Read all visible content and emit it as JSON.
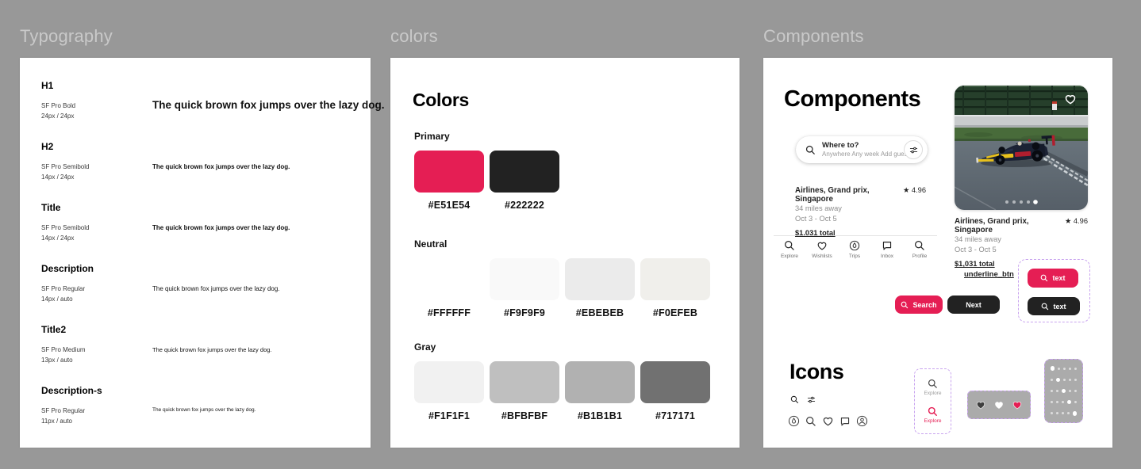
{
  "theme": {
    "bg": "#989898",
    "framelabel": "#c9c9c9",
    "pink": "#E51E54",
    "dark": "#222222",
    "lavender": "#c9a4ef",
    "grayfill": "#ababab"
  },
  "frames": {
    "typography": {
      "label": "Typography"
    },
    "colors": {
      "label": "colors"
    },
    "components": {
      "label": "Components"
    }
  },
  "typography": {
    "styles": [
      {
        "name": "H1",
        "font": "SF Pro Bold",
        "size": "24px / 24px",
        "sample": "The quick brown fox jumps over the lazy dog."
      },
      {
        "name": "H2",
        "font": "SF Pro Semibold",
        "size": "14px / 24px",
        "sample": "The quick brown fox jumps over the lazy dog."
      },
      {
        "name": "Title",
        "font": "SF Pro Semibold",
        "size": "14px / 24px",
        "sample": "The quick brown fox jumps over the lazy dog."
      },
      {
        "name": "Description",
        "font": "SF Pro Regular",
        "size": "14px / auto",
        "sample": "The quick brown fox jumps over the lazy dog."
      },
      {
        "name": "Title2",
        "font": "SF Pro Medium",
        "size": "13px / auto",
        "sample": "The quick brown fox jumps over the lazy dog."
      },
      {
        "name": "Description-s",
        "font": "SF Pro Regular",
        "size": "11px / auto",
        "sample": "The quick brown fox jumps over the lazy dog."
      }
    ]
  },
  "colors_panel": {
    "title": "Colors",
    "groups": [
      {
        "name": "Primary",
        "swatches": [
          {
            "hex": "#E51E54"
          },
          {
            "hex": "#222222"
          }
        ]
      },
      {
        "name": "Neutral",
        "swatches": [
          {
            "hex": "#FFFFFF"
          },
          {
            "hex": "#F9F9F9"
          },
          {
            "hex": "#EBEBEB"
          },
          {
            "hex": "#F0EFEB"
          }
        ]
      },
      {
        "name": "Gray",
        "swatches": [
          {
            "hex": "#F1F1F1"
          },
          {
            "hex": "#BFBFBF"
          },
          {
            "hex": "#B1B1B1"
          },
          {
            "hex": "#717171"
          }
        ]
      }
    ]
  },
  "components": {
    "title": "Components",
    "search_bar": {
      "title": "Where to?",
      "subtitle": "Anywhere Any week Add guests",
      "icon": "search-icon",
      "filter_icon": "filter-sliders-icon"
    },
    "listing": {
      "title": "Airlines, Grand prix, Singapore",
      "star": "★",
      "rating": "4.96",
      "distance": "34 miles away",
      "dates": "Oct 3 - Oct 5",
      "price": "$1,031 total"
    },
    "nav": {
      "items": [
        {
          "label": "Explore",
          "icon": "search-icon"
        },
        {
          "label": "Wishlists",
          "icon": "heart-icon"
        },
        {
          "label": "Trips",
          "icon": "belo-circle-icon"
        },
        {
          "label": "Inbox",
          "icon": "chat-bubble-icon"
        },
        {
          "label": "Profile",
          "icon": "search-icon"
        }
      ]
    },
    "buttons": {
      "underline_btn": "underline_btn",
      "search": "Search",
      "next": "Next",
      "text_variant": "text"
    },
    "icons_section": {
      "title": "Icons"
    },
    "explore_variants": [
      {
        "label": "Explore",
        "state": "default"
      },
      {
        "label": "Explore",
        "state": "active"
      }
    ],
    "carousel": {
      "dots": 5,
      "active_dot": 5
    },
    "dot_grid": {
      "rows": 5,
      "cols": 5,
      "active_pattern": "diagonal"
    }
  }
}
